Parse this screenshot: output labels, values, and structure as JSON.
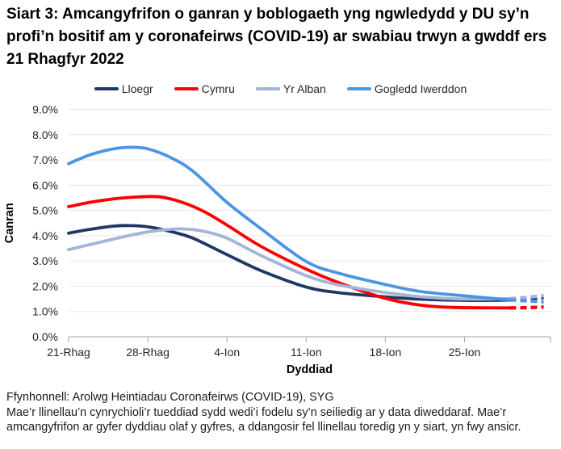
{
  "title": "Siart 3: Amcangyfrifon o ganran y boblogaeth yng ngwledydd y DU sy’n profi’n bositif am y coronafeirws (COVID-19) ar swabiau trwyn a gwddf ers 21 Rhagfyr 2022",
  "legend": [
    {
      "label": "Lloegr",
      "color": "#1F3864"
    },
    {
      "label": "Cymru",
      "color": "#FF0000"
    },
    {
      "label": "Yr Alban",
      "color": "#A3B5D6"
    },
    {
      "label": "Gogledd Iwerddon",
      "color": "#4C94E4"
    }
  ],
  "chart_data": {
    "type": "line",
    "xlabel": "Dyddiad",
    "ylabel": "Canran",
    "x_domain_days": [
      0,
      42.6
    ],
    "ylim": [
      0,
      9
    ],
    "grid": "horizontal",
    "legend_position": "top",
    "x_ticks": [
      {
        "day": 0,
        "label": "21-Rhag"
      },
      {
        "day": 7,
        "label": "28-Rhag"
      },
      {
        "day": 14,
        "label": "4-Ion"
      },
      {
        "day": 21,
        "label": "11-Ion"
      },
      {
        "day": 28,
        "label": "18-Ion"
      },
      {
        "day": 35,
        "label": "25-Ion"
      }
    ],
    "y_ticks": [
      {
        "v": 0,
        "label": "0.0%"
      },
      {
        "v": 1,
        "label": "1.0%"
      },
      {
        "v": 2,
        "label": "2.0%"
      },
      {
        "v": 3,
        "label": "3.0%"
      },
      {
        "v": 4,
        "label": "4.0%"
      },
      {
        "v": 5,
        "label": "5.0%"
      },
      {
        "v": 6,
        "label": "6.0%"
      },
      {
        "v": 7,
        "label": "7.0%"
      },
      {
        "v": 8,
        "label": "8.0%"
      },
      {
        "v": 9,
        "label": "9.0%"
      }
    ],
    "note": "dashed tail = less certain modelled estimates for final days",
    "series": [
      {
        "name": "Lloegr",
        "color": "#1F3864",
        "solid": [
          [
            0,
            4.1
          ],
          [
            2,
            4.26
          ],
          [
            4,
            4.38
          ],
          [
            5.5,
            4.4
          ],
          [
            7,
            4.35
          ],
          [
            9,
            4.17
          ],
          [
            11,
            3.9
          ],
          [
            14,
            3.25
          ],
          [
            17,
            2.62
          ],
          [
            21,
            1.97
          ],
          [
            24,
            1.74
          ],
          [
            28,
            1.58
          ],
          [
            31,
            1.49
          ],
          [
            35,
            1.44
          ],
          [
            39,
            1.45
          ]
        ],
        "dashed": [
          [
            39,
            1.45
          ],
          [
            40.5,
            1.49
          ],
          [
            42,
            1.55
          ]
        ]
      },
      {
        "name": "Cymru",
        "color": "#FF0000",
        "solid": [
          [
            0,
            5.15
          ],
          [
            2,
            5.33
          ],
          [
            4,
            5.46
          ],
          [
            6,
            5.53
          ],
          [
            8,
            5.54
          ],
          [
            10,
            5.33
          ],
          [
            12,
            4.95
          ],
          [
            14,
            4.42
          ],
          [
            17,
            3.58
          ],
          [
            21,
            2.68
          ],
          [
            24,
            2.12
          ],
          [
            28,
            1.52
          ],
          [
            31,
            1.26
          ],
          [
            34,
            1.16
          ],
          [
            39,
            1.14
          ]
        ],
        "dashed": [
          [
            39,
            1.14
          ],
          [
            40.5,
            1.15
          ],
          [
            42,
            1.18
          ]
        ]
      },
      {
        "name": "Yr Alban",
        "color": "#A3B5D6",
        "solid": [
          [
            0,
            3.45
          ],
          [
            2,
            3.66
          ],
          [
            4,
            3.87
          ],
          [
            6,
            4.07
          ],
          [
            8,
            4.21
          ],
          [
            10,
            4.27
          ],
          [
            12,
            4.17
          ],
          [
            14,
            3.9
          ],
          [
            17,
            3.22
          ],
          [
            21,
            2.42
          ],
          [
            24,
            2.04
          ],
          [
            28,
            1.75
          ],
          [
            31,
            1.59
          ],
          [
            35,
            1.49
          ],
          [
            39,
            1.51
          ]
        ],
        "dashed": [
          [
            39,
            1.51
          ],
          [
            40.5,
            1.56
          ],
          [
            42,
            1.63
          ]
        ]
      },
      {
        "name": "Gogledd Iwerddon",
        "color": "#4C94E4",
        "solid": [
          [
            0,
            6.85
          ],
          [
            2,
            7.22
          ],
          [
            4,
            7.44
          ],
          [
            5.5,
            7.5
          ],
          [
            7,
            7.44
          ],
          [
            9,
            7.1
          ],
          [
            11,
            6.55
          ],
          [
            14,
            5.32
          ],
          [
            17,
            4.28
          ],
          [
            21,
            2.98
          ],
          [
            24,
            2.5
          ],
          [
            28,
            2.07
          ],
          [
            31,
            1.8
          ],
          [
            35,
            1.62
          ],
          [
            39,
            1.46
          ]
        ],
        "dashed": [
          [
            39,
            1.46
          ],
          [
            40.5,
            1.42
          ],
          [
            42,
            1.38
          ]
        ]
      }
    ]
  },
  "footer": {
    "source": "Ffynhonnell: Arolwg Heintiadau Coronafeirws (COVID-19), SYG",
    "note": "Mae’r llinellau’n cynrychioli’r tueddiad sydd wedi’i fodelu sy’n seiliedig ar y data diweddaraf. Mae’r amcangyfrifon ar gyfer dyddiau olaf y gyfres, a ddangosir fel llinellau toredig yn y siart, yn fwy ansicr."
  }
}
